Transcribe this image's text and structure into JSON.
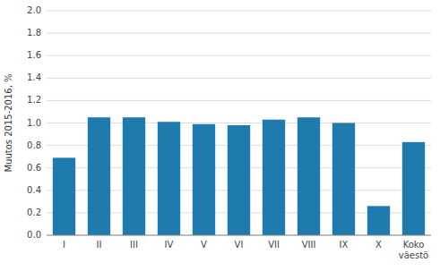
{
  "chart_data": {
    "type": "bar",
    "categories": [
      "I",
      "II",
      "III",
      "IV",
      "V",
      "VI",
      "VII",
      "VIII",
      "IX",
      "X",
      "Koko\nväestö"
    ],
    "values": [
      0.69,
      1.05,
      1.05,
      1.01,
      0.99,
      0.98,
      1.03,
      1.05,
      1.0,
      0.26,
      0.83
    ],
    "color": "#1f7aad",
    "ylabel": "Muutos 2015-2016, %",
    "ylim": [
      0.0,
      2.0
    ],
    "yticks": [
      {
        "value": 0,
        "label": "0.0"
      },
      0.2,
      0.4,
      0.6,
      0.8,
      {
        "value": 1,
        "label": "1.0"
      },
      1.2,
      1.4,
      1.6,
      1.8,
      {
        "value": 2,
        "label": "2.0"
      }
    ],
    "grid": true
  }
}
